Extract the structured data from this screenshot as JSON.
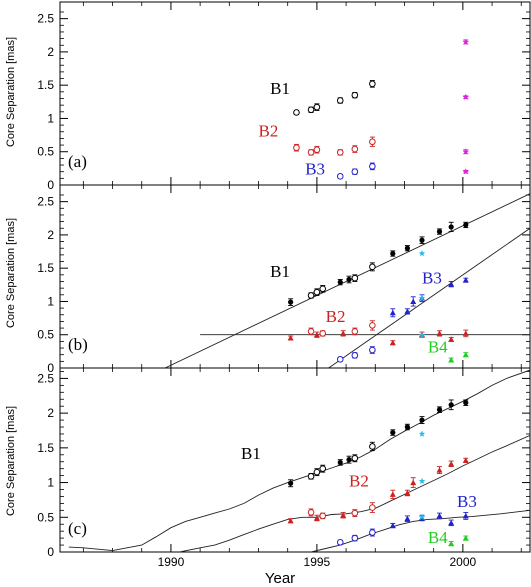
{
  "chart_data": {
    "type": "scatter",
    "xlabel": "Year",
    "ylabel": "Core Separation [mas]",
    "xlim": [
      1986.2,
      2002.3
    ],
    "x_ticks": [
      "1990",
      "1995",
      "2000"
    ],
    "y_ticks": [
      "0",
      "0.5",
      "1",
      "1.5",
      "2",
      "2.5"
    ],
    "colors": {
      "B1": "#000000",
      "B2": "#cc2222",
      "B3": "#2222cc",
      "B4": "#22cc22",
      "mag": "#dd22dd",
      "cyan": "#22bbee"
    },
    "panels": [
      {
        "label": "(a)",
        "ylim": [
          0,
          2.75
        ],
        "component_labels": [
          {
            "text": "B1",
            "series": "B1",
            "x": 1993.4,
            "y": 1.37
          },
          {
            "text": "B2",
            "series": "B2",
            "x": 1993.0,
            "y": 0.73
          },
          {
            "text": "B3",
            "series": "B3",
            "x": 1994.6,
            "y": 0.16
          }
        ],
        "series": [
          {
            "name": "B1",
            "marker": "open",
            "x": [
              1994.3,
              1994.8,
              1995.0,
              1995.8,
              1996.3,
              1996.9
            ],
            "y": [
              1.09,
              1.13,
              1.17,
              1.27,
              1.35,
              1.52
            ],
            "err": [
              0.03,
              0.04,
              0.05,
              0.04,
              0.04,
              0.05
            ]
          },
          {
            "name": "B2",
            "marker": "open",
            "x": [
              1994.3,
              1994.8,
              1995.0,
              1995.8,
              1996.3,
              1996.9
            ],
            "y": [
              0.56,
              0.49,
              0.53,
              0.49,
              0.54,
              0.65
            ],
            "err": [
              0.05,
              0.04,
              0.05,
              0.04,
              0.05,
              0.07
            ]
          },
          {
            "name": "B3",
            "marker": "open",
            "x": [
              1995.8,
              1996.3,
              1996.9
            ],
            "y": [
              0.13,
              0.2,
              0.28
            ],
            "err": [
              0.03,
              0.04,
              0.05
            ]
          },
          {
            "name": "mag",
            "marker": "star",
            "x": [
              2000.1,
              2000.1,
              2000.1,
              2000.1
            ],
            "y": [
              2.15,
              1.32,
              0.5,
              0.2
            ],
            "err": [
              0.03,
              0.02,
              0.03,
              0.02
            ]
          }
        ],
        "lines": []
      },
      {
        "label": "(b)",
        "ylim": [
          0,
          2.75
        ],
        "component_labels": [
          {
            "text": "B1",
            "series": "B1",
            "x": 1993.4,
            "y": 1.37
          },
          {
            "text": "B2",
            "series": "B2",
            "x": 1995.3,
            "y": 0.69
          },
          {
            "text": "B3",
            "series": "B3",
            "x": 1998.6,
            "y": 1.27
          },
          {
            "text": "B4",
            "series": "B4",
            "x": 1998.8,
            "y": 0.23
          }
        ],
        "series": [
          {
            "name": "B1",
            "marker": "filled",
            "x": [
              1994.1,
              1995.8,
              1996.1,
              1997.6,
              1998.1,
              1998.6,
              1999.2,
              1999.6,
              2000.1
            ],
            "y": [
              0.99,
              1.29,
              1.33,
              1.72,
              1.8,
              1.92,
              2.05,
              2.12,
              2.15
            ],
            "err": [
              0.05,
              0.04,
              0.05,
              0.04,
              0.04,
              0.05,
              0.04,
              0.07,
              0.04
            ]
          },
          {
            "name": "B1",
            "marker": "open",
            "x": [
              1994.8,
              1995.0,
              1995.2,
              1996.3,
              1996.9
            ],
            "y": [
              1.09,
              1.14,
              1.19,
              1.35,
              1.52
            ],
            "err": [
              0.04,
              0.05,
              0.05,
              0.05,
              0.06
            ]
          },
          {
            "name": "B2",
            "marker": "filled",
            "x": [
              1994.1,
              1995.0,
              1995.9,
              1997.6,
              1998.6,
              1999.2,
              1999.6,
              2000.1
            ],
            "y": [
              0.45,
              0.5,
              0.52,
              0.38,
              0.5,
              0.52,
              0.43,
              0.52
            ],
            "err": [
              0.03,
              0.04,
              0.04,
              0.03,
              0.04,
              0.04,
              0.03,
              0.05
            ]
          },
          {
            "name": "B2",
            "marker": "open",
            "x": [
              1994.8,
              1995.2,
              1996.3,
              1996.9
            ],
            "y": [
              0.55,
              0.52,
              0.55,
              0.64
            ],
            "err": [
              0.05,
              0.04,
              0.05,
              0.07
            ]
          },
          {
            "name": "B3",
            "marker": "filled",
            "x": [
              1997.6,
              1998.1,
              1998.3,
              1998.6,
              1999.6,
              2000.1
            ],
            "y": [
              0.83,
              0.85,
              1.0,
              1.05,
              1.26,
              1.32
            ],
            "err": [
              0.06,
              0.04,
              0.07,
              0.05,
              0.04,
              0.03
            ]
          },
          {
            "name": "B3",
            "marker": "open",
            "x": [
              1995.8,
              1996.3,
              1996.9
            ],
            "y": [
              0.13,
              0.19,
              0.27
            ],
            "err": [
              0.03,
              0.04,
              0.05
            ]
          },
          {
            "name": "B4",
            "marker": "filled",
            "x": [
              1999.6,
              2000.1
            ],
            "y": [
              0.12,
              0.2
            ],
            "err": [
              0.03,
              0.03
            ]
          },
          {
            "name": "cyan",
            "marker": "star",
            "x": [
              1998.6,
              1998.6,
              1998.6
            ],
            "y": [
              1.72,
              1.05,
              0.49
            ],
            "err": [
              0,
              0,
              0
            ]
          }
        ],
        "lines": [
          {
            "series": "B1",
            "x": [
              1989.8,
              2002.3
            ],
            "y": [
              0.0,
              2.62
            ]
          },
          {
            "series": "B3",
            "x": [
              1995.4,
              2002.3
            ],
            "y": [
              0.0,
              2.1
            ]
          },
          {
            "series": "B2",
            "x": [
              1991.0,
              2002.3
            ],
            "y": [
              0.5,
              0.5
            ]
          }
        ]
      },
      {
        "label": "(c)",
        "ylim": [
          0,
          2.65
        ],
        "component_labels": [
          {
            "text": "B1",
            "series": "B1",
            "x": 1992.4,
            "y": 1.34
          },
          {
            "text": "B2",
            "series": "B2",
            "x": 1996.1,
            "y": 0.94
          },
          {
            "text": "B3",
            "series": "B3",
            "x": 1999.8,
            "y": 0.65
          },
          {
            "text": "B4",
            "series": "B4",
            "x": 1998.8,
            "y": 0.13
          }
        ],
        "series": [
          {
            "name": "B1",
            "marker": "filled",
            "x": [
              1994.1,
              1995.8,
              1996.1,
              1997.6,
              1998.1,
              1998.6,
              1999.2,
              1999.6,
              2000.1
            ],
            "y": [
              0.99,
              1.29,
              1.33,
              1.72,
              1.8,
              1.9,
              2.05,
              2.12,
              2.15
            ],
            "err": [
              0.05,
              0.04,
              0.05,
              0.04,
              0.04,
              0.05,
              0.04,
              0.07,
              0.04
            ]
          },
          {
            "name": "B1",
            "marker": "open",
            "x": [
              1994.8,
              1995.0,
              1995.2,
              1996.3,
              1996.9
            ],
            "y": [
              1.09,
              1.15,
              1.2,
              1.35,
              1.52
            ],
            "err": [
              0.04,
              0.05,
              0.05,
              0.05,
              0.06
            ]
          },
          {
            "name": "B2",
            "marker": "filled",
            "x": [
              1994.1,
              1995.0,
              1995.9,
              1997.6,
              1998.1,
              1998.3,
              1999.2,
              1999.6,
              2000.1
            ],
            "y": [
              0.45,
              0.49,
              0.53,
              0.83,
              0.85,
              1.0,
              1.18,
              1.27,
              1.32
            ],
            "err": [
              0.03,
              0.04,
              0.04,
              0.06,
              0.04,
              0.07,
              0.05,
              0.04,
              0.03
            ]
          },
          {
            "name": "B2",
            "marker": "open",
            "x": [
              1994.8,
              1995.2,
              1996.3,
              1996.9
            ],
            "y": [
              0.57,
              0.52,
              0.56,
              0.64
            ],
            "err": [
              0.05,
              0.04,
              0.05,
              0.07
            ]
          },
          {
            "name": "B3",
            "marker": "filled",
            "x": [
              1997.6,
              1998.1,
              1998.6,
              1999.2,
              1999.6,
              2000.1
            ],
            "y": [
              0.38,
              0.48,
              0.49,
              0.52,
              0.42,
              0.52
            ],
            "err": [
              0.03,
              0.04,
              0.04,
              0.04,
              0.04,
              0.05
            ]
          },
          {
            "name": "B3",
            "marker": "open",
            "x": [
              1995.8,
              1996.3,
              1996.9
            ],
            "y": [
              0.14,
              0.2,
              0.28
            ],
            "err": [
              0.03,
              0.04,
              0.05
            ]
          },
          {
            "name": "B4",
            "marker": "filled",
            "x": [
              1999.6,
              2000.1
            ],
            "y": [
              0.12,
              0.2
            ],
            "err": [
              0.03,
              0.03
            ]
          },
          {
            "name": "cyan",
            "marker": "star",
            "x": [
              1998.6,
              1998.6,
              1998.6
            ],
            "y": [
              1.7,
              1.02,
              0.5
            ],
            "err": [
              0,
              0,
              0
            ]
          }
        ],
        "lines": [
          {
            "series": "B1",
            "x": [
              1986.5,
              1987.0,
              1987.5,
              1988.0,
              1988.5,
              1989.0,
              1989.5,
              1990.0,
              1990.5,
              1991.0,
              1991.5,
              1992.0,
              1992.5,
              1993.0,
              1993.5,
              1994.0,
              1994.5,
              1995.0,
              1995.5,
              1996.0,
              1996.5,
              1997.0,
              1997.5,
              1998.0,
              1998.5,
              1999.0,
              1999.5,
              2000.0,
              2000.5,
              2001.0,
              2001.5,
              2002.3
            ],
            "y": [
              0.07,
              0.06,
              0.04,
              0.02,
              0.06,
              0.1,
              0.22,
              0.35,
              0.44,
              0.5,
              0.56,
              0.62,
              0.7,
              0.82,
              0.92,
              1.0,
              1.07,
              1.14,
              1.21,
              1.28,
              1.37,
              1.48,
              1.62,
              1.74,
              1.85,
              1.97,
              2.07,
              2.17,
              2.28,
              2.4,
              2.5,
              2.62
            ]
          },
          {
            "series": "B2",
            "x": [
              1990.3,
              1991.0,
              1991.5,
              1992.0,
              1992.5,
              1993.0,
              1993.5,
              1994.0,
              1994.5,
              1995.0,
              1995.5,
              1996.0,
              1996.5,
              1997.0,
              1997.5,
              1998.0,
              1998.5,
              1999.0,
              1999.5,
              2000.0,
              2000.5,
              2001.0,
              2001.5,
              2002.3
            ],
            "y": [
              0.0,
              0.06,
              0.1,
              0.17,
              0.25,
              0.33,
              0.4,
              0.47,
              0.5,
              0.5,
              0.54,
              0.55,
              0.58,
              0.63,
              0.73,
              0.83,
              0.93,
              1.03,
              1.13,
              1.24,
              1.34,
              1.44,
              1.53,
              1.68
            ]
          },
          {
            "series": "B3",
            "x": [
              1994.8,
              1995.3,
              1995.8,
              1996.3,
              1996.8,
              1997.3,
              1997.8,
              1998.3,
              1998.8,
              1999.3,
              1999.8,
              2000.3,
              2000.8,
              2001.3,
              2002.3
            ],
            "y": [
              0.0,
              0.05,
              0.1,
              0.17,
              0.25,
              0.32,
              0.39,
              0.44,
              0.47,
              0.48,
              0.5,
              0.51,
              0.53,
              0.55,
              0.6
            ]
          }
        ]
      }
    ]
  }
}
